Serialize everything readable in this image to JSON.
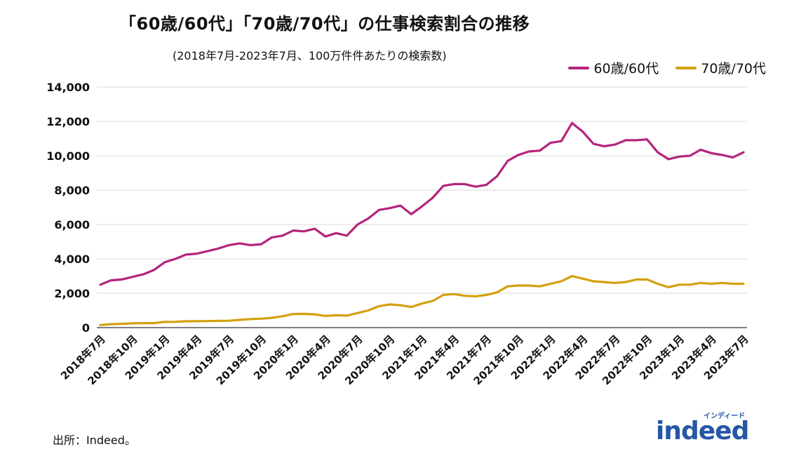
{
  "title": "「60歳/60代」「70歳/70代」の仕事検索割合の推移",
  "subtitle": "(2018年7月-2023年7月、100万件件あたりの検索数)",
  "source": "出所：Indeed。",
  "logo": {
    "word": "indeed",
    "kana": "インディード"
  },
  "colors": {
    "series60": "#b5247d",
    "series70": "#d4a00f",
    "grid": "#d9d9d9",
    "axis": "#333333"
  },
  "chart_data": {
    "type": "line",
    "title": "「60歳/60代」「70歳/70代」の仕事検索割合の推移",
    "subtitle": "(2018年7月-2023年7月、100万件件あたりの検索数)",
    "xlabel": "",
    "ylabel": "",
    "ylim": [
      0,
      14000
    ],
    "yticks": [
      0,
      2000,
      4000,
      6000,
      8000,
      10000,
      12000,
      14000
    ],
    "ytick_labels": [
      "0",
      "2,000",
      "4,000",
      "6,000",
      "8,000",
      "10,000",
      "12,000",
      "14,000"
    ],
    "grid": true,
    "legend_position": "top-right",
    "x": [
      "2018年7月",
      "2018年8月",
      "2018年9月",
      "2018年10月",
      "2018年11月",
      "2018年12月",
      "2019年1月",
      "2019年2月",
      "2019年3月",
      "2019年4月",
      "2019年5月",
      "2019年6月",
      "2019年7月",
      "2019年8月",
      "2019年9月",
      "2019年10月",
      "2019年11月",
      "2019年12月",
      "2020年1月",
      "2020年2月",
      "2020年3月",
      "2020年4月",
      "2020年5月",
      "2020年6月",
      "2020年7月",
      "2020年8月",
      "2020年9月",
      "2020年10月",
      "2020年11月",
      "2020年12月",
      "2021年1月",
      "2021年2月",
      "2021年3月",
      "2021年4月",
      "2021年5月",
      "2021年6月",
      "2021年7月",
      "2021年8月",
      "2021年9月",
      "2021年10月",
      "2021年11月",
      "2021年12月",
      "2022年1月",
      "2022年2月",
      "2022年3月",
      "2022年4月",
      "2022年5月",
      "2022年6月",
      "2022年7月",
      "2022年8月",
      "2022年9月",
      "2022年10月",
      "2022年11月",
      "2022年12月",
      "2023年1月",
      "2023年2月",
      "2023年3月",
      "2023年4月",
      "2023年5月",
      "2023年6月",
      "2023年7月"
    ],
    "xtick_labels": [
      "2018年7月",
      "2018年10月",
      "2019年1月",
      "2019年4月",
      "2019年7月",
      "2019年10月",
      "2020年1月",
      "2020年4月",
      "2020年7月",
      "2020年10月",
      "2021年1月",
      "2021年4月",
      "2021年7月",
      "2021年10月",
      "2022年1月",
      "2022年4月",
      "2022年7月",
      "2022年10月",
      "2023年1月",
      "2023年4月",
      "2023年7月"
    ],
    "series": [
      {
        "name": "60歳/60代",
        "color": "#b5247d",
        "values": [
          2500,
          2750,
          2800,
          2950,
          3100,
          3350,
          3800,
          4000,
          4250,
          4300,
          4450,
          4600,
          4800,
          4900,
          4800,
          4850,
          5250,
          5350,
          5650,
          5600,
          5750,
          5300,
          5500,
          5350,
          6000,
          6350,
          6850,
          6950,
          7100,
          6600,
          7050,
          7550,
          8250,
          8350,
          8350,
          8200,
          8300,
          8800,
          9700,
          10050,
          10250,
          10300,
          10750,
          10850,
          11900,
          11400,
          10700,
          10550,
          10650,
          10900,
          10900,
          10950,
          10200,
          9800,
          9950,
          10000,
          10350,
          10150,
          10050,
          9900,
          10200
        ]
      },
      {
        "name": "70歳/70代",
        "color": "#d4a00f",
        "values": [
          150,
          200,
          220,
          250,
          260,
          260,
          330,
          340,
          370,
          370,
          380,
          390,
          400,
          450,
          500,
          520,
          570,
          660,
          790,
          800,
          770,
          680,
          720,
          700,
          850,
          1000,
          1250,
          1350,
          1300,
          1200,
          1400,
          1550,
          1900,
          1950,
          1850,
          1820,
          1900,
          2050,
          2400,
          2450,
          2450,
          2400,
          2550,
          2700,
          3000,
          2850,
          2700,
          2650,
          2600,
          2650,
          2800,
          2800,
          2550,
          2350,
          2500,
          2500,
          2600,
          2550,
          2600,
          2550,
          2550
        ]
      }
    ]
  }
}
